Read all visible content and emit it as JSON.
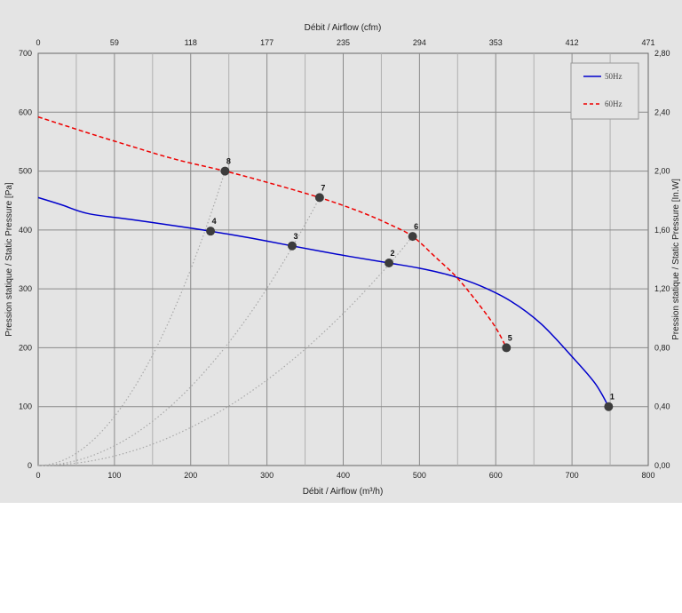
{
  "chart_data": {
    "type": "line",
    "title": "",
    "xlabel_bottom": "Débit / Airflow (m³/h)",
    "xlabel_top": "Débit / Airflow (cfm)",
    "ylabel_left": "Pression statique / Static Pressure [Pa]",
    "ylabel_right": "Pression statique / Static Pressure [In.W]",
    "xlim": [
      0,
      800
    ],
    "ylim": [
      0,
      700
    ],
    "x_ticks": [
      "0",
      "100",
      "200",
      "300",
      "400",
      "500",
      "600",
      "700",
      "800"
    ],
    "x_top_ticks": [
      "0",
      "59",
      "118",
      "177",
      "235",
      "294",
      "353",
      "412",
      "471"
    ],
    "y_ticks": [
      "0",
      "100",
      "200",
      "300",
      "400",
      "500",
      "600",
      "700"
    ],
    "y_right_ticks": [
      "0,00",
      "0,40",
      "0,80",
      "1,20",
      "1,60",
      "2,00",
      "2,40",
      "2,80"
    ],
    "grid": true,
    "legend_position": "top-right",
    "series": [
      {
        "name": "50Hz",
        "color": "#0000cc",
        "style": "solid",
        "x": [
          0,
          30,
          65,
          120,
          180,
          226,
          280,
          333,
          400,
          460,
          500,
          540,
          580,
          620,
          660,
          700,
          730,
          748
        ],
        "y": [
          455,
          443,
          428,
          418,
          407,
          398,
          386,
          373,
          357,
          344,
          335,
          323,
          305,
          279,
          240,
          185,
          140,
          100
        ]
      },
      {
        "name": "60Hz",
        "color": "#ee0000",
        "style": "dashed",
        "x": [
          0,
          60,
          120,
          180,
          245,
          300,
          369,
          420,
          460,
          491,
          520,
          550,
          580,
          600,
          614
        ],
        "y": [
          592,
          567,
          543,
          520,
          500,
          481,
          455,
          432,
          410,
          389,
          355,
          318,
          270,
          234,
          200
        ]
      }
    ],
    "system_curves": [
      {
        "x_end": 245,
        "y_end": 500
      },
      {
        "x_end": 369,
        "y_end": 455
      },
      {
        "x_end": 491,
        "y_end": 389
      }
    ],
    "points": [
      {
        "label": "1",
        "x": 748,
        "y": 100
      },
      {
        "label": "2",
        "x": 460,
        "y": 344
      },
      {
        "label": "3",
        "x": 333,
        "y": 373
      },
      {
        "label": "4",
        "x": 226,
        "y": 398
      },
      {
        "label": "5",
        "x": 614,
        "y": 200
      },
      {
        "label": "6",
        "x": 491,
        "y": 389
      },
      {
        "label": "7",
        "x": 369,
        "y": 455
      },
      {
        "label": "8",
        "x": 245,
        "y": 500
      }
    ]
  }
}
